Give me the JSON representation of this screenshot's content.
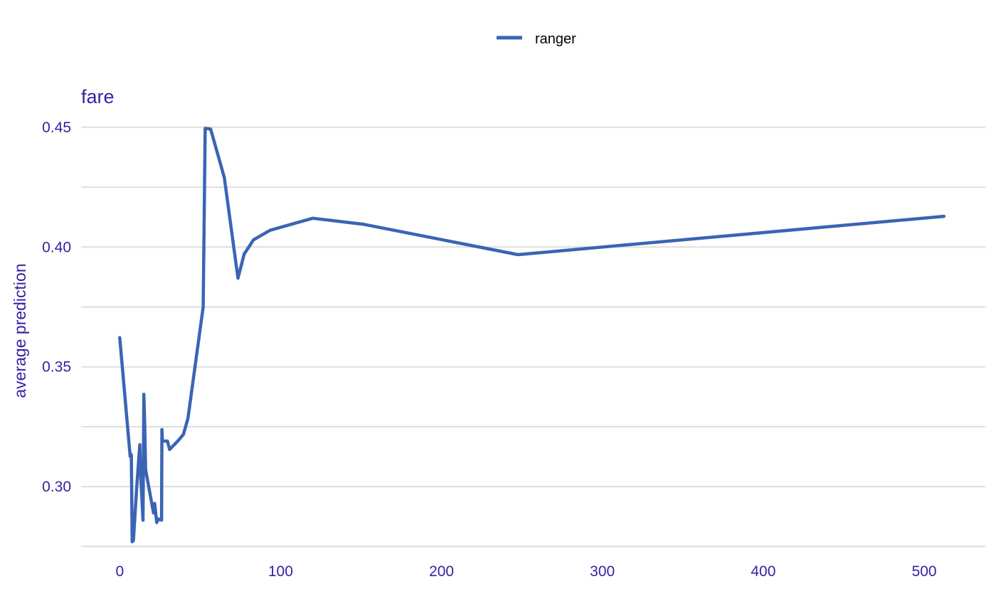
{
  "chart_data": {
    "type": "line",
    "title": "fare",
    "xlabel": "",
    "ylabel": "average prediction",
    "xlim": [
      -24,
      538
    ],
    "ylim": [
      0.2745,
      0.4645
    ],
    "x_ticks": [
      0,
      100,
      200,
      300,
      400,
      500
    ],
    "x_tick_labels": [
      "0",
      "100",
      "200",
      "300",
      "400",
      "500"
    ],
    "y_grid": [
      0.275,
      0.3,
      0.325,
      0.35,
      0.375,
      0.4,
      0.425,
      0.45
    ],
    "y_ticks": [
      0.3,
      0.35,
      0.4,
      0.45
    ],
    "y_tick_labels": [
      "0.30",
      "0.35",
      "0.40",
      "0.45"
    ],
    "grid": "horizontal",
    "legend_position": "top",
    "series": [
      {
        "name": "ranger",
        "color": "#3b64b4",
        "x": [
          0,
          6.5,
          7.2,
          7.75,
          7.9,
          8.05,
          8.5,
          10.5,
          12.5,
          13.0,
          14.45,
          15.0,
          15.5,
          16.1,
          21.0,
          21.7,
          23.0,
          24.15,
          26.0,
          26.25,
          26.55,
          29.7,
          31.0,
          36.75,
          39.6,
          42.4,
          51.86,
          53.1,
          56.5,
          65.0,
          73.5,
          77.3,
          83.16,
          93.5,
          120.0,
          151.55,
          247.52,
          512.33
        ],
        "y": [
          0.3622,
          0.3126,
          0.3133,
          0.277,
          0.2775,
          0.278,
          0.2775,
          0.299,
          0.3175,
          0.305,
          0.286,
          0.3385,
          0.327,
          0.307,
          0.289,
          0.293,
          0.285,
          0.2865,
          0.286,
          0.3238,
          0.319,
          0.319,
          0.3155,
          0.3195,
          0.3218,
          0.3285,
          0.375,
          0.4495,
          0.4492,
          0.429,
          0.387,
          0.397,
          0.403,
          0.407,
          0.412,
          0.4095,
          0.3968,
          0.4128
        ]
      }
    ]
  }
}
